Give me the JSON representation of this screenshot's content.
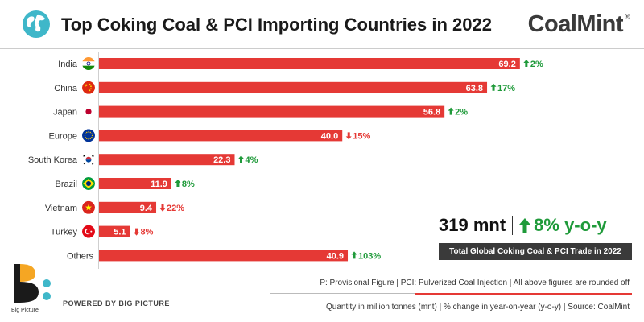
{
  "header": {
    "title": "Top Coking Coal & PCI Importing Countries in 2022",
    "brand": "CoalMint",
    "brand_reg": "®"
  },
  "colors": {
    "bar": "#e53935",
    "up": "#1f9a3a",
    "down": "#e53935",
    "accent": "#3fb7c9"
  },
  "chart_data": {
    "type": "bar",
    "orientation": "horizontal",
    "title": "Top Coking Coal & PCI Importing Countries in 2022",
    "categories": [
      "India",
      "China",
      "Japan",
      "Europe",
      "South Korea",
      "Brazil",
      "Vietnam",
      "Turkey",
      "Others"
    ],
    "values": [
      69.2,
      63.8,
      56.8,
      40.0,
      22.3,
      11.9,
      9.4,
      5.1,
      40.9
    ],
    "value_labels": [
      "69.2",
      "63.8",
      "56.8",
      "40.0",
      "22.3",
      "11.9",
      "9.4",
      "5.1",
      "40.9"
    ],
    "yoy_change": [
      "2%",
      "17%",
      "2%",
      "15%",
      "4%",
      "8%",
      "22%",
      "8%",
      "103%"
    ],
    "yoy_direction": [
      "up",
      "up",
      "up",
      "down",
      "up",
      "up",
      "down",
      "down",
      "up"
    ],
    "flags": [
      "india",
      "china",
      "japan",
      "eu",
      "south-korea",
      "brazil",
      "vietnam",
      "turkey",
      "none"
    ],
    "xlim": [
      0,
      72
    ],
    "grid": false,
    "legend": "none"
  },
  "summary": {
    "total": "319 mnt",
    "change": "8% y-o-y",
    "change_direction": "up",
    "label": "Total Global Coking Coal & PCI Trade in 2022"
  },
  "footer": {
    "note": "P: Provisional Figure  |  PCI: Pulverized Coal Injection  |  All above figures are rounded off",
    "source": "Quantity in million tonnes (mnt)  |  % change in year-on-year (y-o-y)  |  Source: CoalMint",
    "powered": "POWERED BY BIG PICTURE",
    "bp_name": "Big Picture"
  }
}
